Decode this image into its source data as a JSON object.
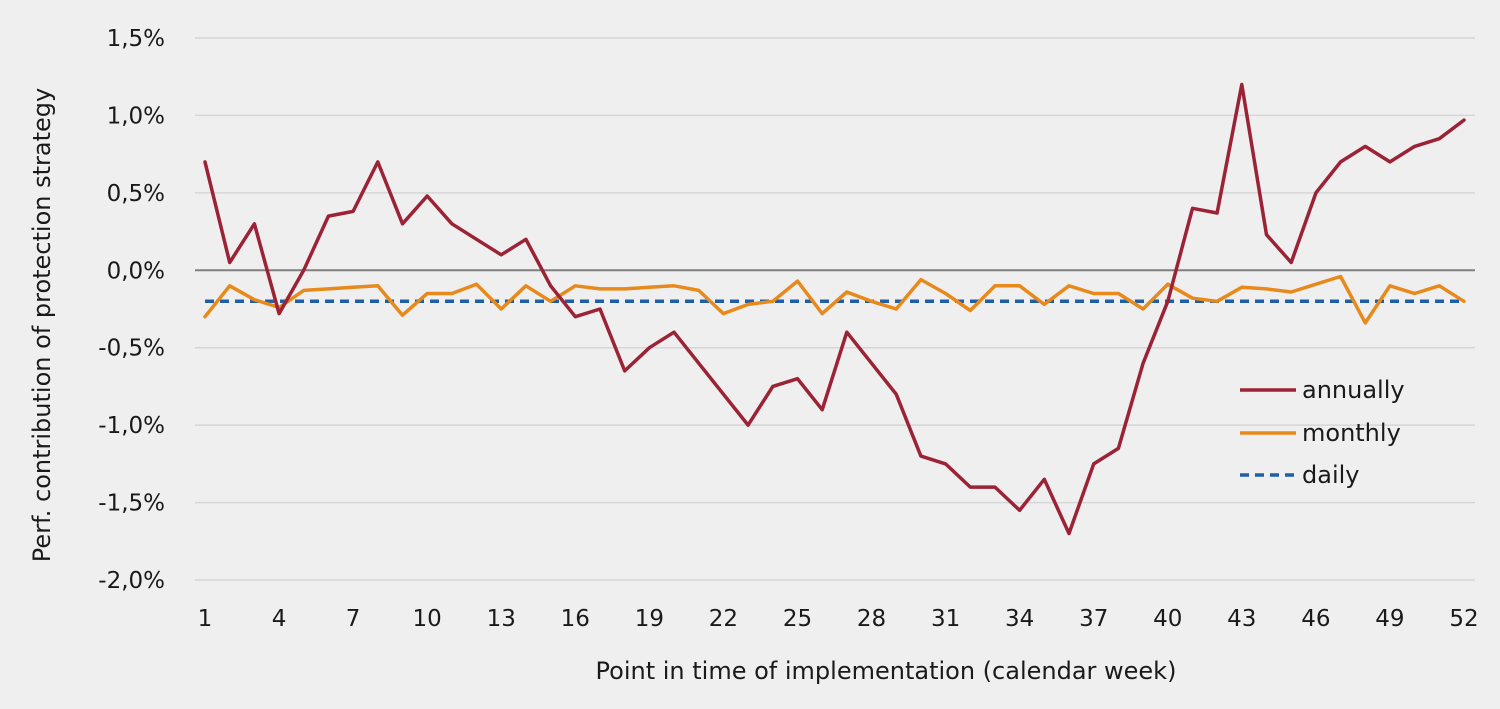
{
  "chart_data": {
    "type": "line",
    "xlabel": "Point in time of implementation (calendar week)",
    "ylabel": "Perf. contribution of protection strategy",
    "x_tick_labels": [
      "1",
      "4",
      "7",
      "10",
      "13",
      "16",
      "19",
      "22",
      "25",
      "28",
      "31",
      "34",
      "37",
      "40",
      "43",
      "46",
      "49",
      "52"
    ],
    "y_tick_labels": [
      "1,5%",
      "1,0%",
      "0,5%",
      "0,0%",
      "-0,5%",
      "-1,0%",
      "-1,5%",
      "-2,0%"
    ],
    "y_ticks": [
      1.5,
      1.0,
      0.5,
      0.0,
      -0.5,
      -1.0,
      -1.5,
      -2.0
    ],
    "xlim": [
      1,
      52
    ],
    "ylim": [
      -2.0,
      1.5
    ],
    "grid": true,
    "legend_position": "right",
    "x": [
      1,
      2,
      3,
      4,
      5,
      6,
      7,
      8,
      9,
      10,
      11,
      12,
      13,
      14,
      15,
      16,
      17,
      18,
      19,
      20,
      21,
      22,
      23,
      24,
      25,
      26,
      27,
      28,
      29,
      30,
      31,
      32,
      33,
      34,
      35,
      36,
      37,
      38,
      39,
      40,
      41,
      42,
      43,
      44,
      45,
      46,
      47,
      48,
      49,
      50,
      51,
      52
    ],
    "series": [
      {
        "name": "annually",
        "color": "#9b2335",
        "dash": "solid",
        "values": [
          0.7,
          0.05,
          0.3,
          -0.28,
          0.0,
          0.35,
          0.38,
          0.7,
          0.3,
          0.48,
          0.3,
          0.2,
          0.1,
          0.2,
          -0.1,
          -0.3,
          -0.25,
          -0.65,
          -0.5,
          -0.4,
          -0.6,
          -0.8,
          -1.0,
          -0.75,
          -0.7,
          -0.9,
          -0.4,
          -0.6,
          -0.8,
          -1.2,
          -1.25,
          -1.4,
          -1.4,
          -1.55,
          -1.35,
          -1.7,
          -1.25,
          -1.15,
          -0.6,
          -0.2,
          0.4,
          0.37,
          1.2,
          0.23,
          0.05,
          0.5,
          0.7,
          0.8,
          0.7,
          0.8,
          0.85,
          0.97
        ]
      },
      {
        "name": "monthly",
        "color": "#e8891c",
        "dash": "solid",
        "values": [
          -0.3,
          -0.1,
          -0.19,
          -0.24,
          -0.13,
          -0.12,
          -0.11,
          -0.1,
          -0.29,
          -0.15,
          -0.15,
          -0.09,
          -0.25,
          -0.1,
          -0.2,
          -0.1,
          -0.12,
          -0.12,
          -0.11,
          -0.1,
          -0.13,
          -0.28,
          -0.22,
          -0.2,
          -0.07,
          -0.28,
          -0.14,
          -0.2,
          -0.25,
          -0.06,
          -0.15,
          -0.26,
          -0.1,
          -0.1,
          -0.22,
          -0.1,
          -0.15,
          -0.15,
          -0.25,
          -0.09,
          -0.18,
          -0.2,
          -0.11,
          -0.12,
          -0.14,
          -0.09,
          -0.04,
          -0.34,
          -0.1,
          -0.15,
          -0.1,
          -0.2
        ]
      },
      {
        "name": "daily",
        "color": "#1f5fa8",
        "dash": "dashed",
        "values": [
          -0.2,
          -0.2,
          -0.2,
          -0.2,
          -0.2,
          -0.2,
          -0.2,
          -0.2,
          -0.2,
          -0.2,
          -0.2,
          -0.2,
          -0.2,
          -0.2,
          -0.2,
          -0.2,
          -0.2,
          -0.2,
          -0.2,
          -0.2,
          -0.2,
          -0.2,
          -0.2,
          -0.2,
          -0.2,
          -0.2,
          -0.2,
          -0.2,
          -0.2,
          -0.2,
          -0.2,
          -0.2,
          -0.2,
          -0.2,
          -0.2,
          -0.2,
          -0.2,
          -0.2,
          -0.2,
          -0.2,
          -0.2,
          -0.2,
          -0.2,
          -0.2,
          -0.2,
          -0.2,
          -0.2,
          -0.2,
          -0.2,
          -0.2,
          -0.2,
          -0.2
        ]
      }
    ],
    "colors": {
      "background": "#efefef",
      "grid": "#d6d6d6",
      "zero_line": "#808080"
    }
  }
}
